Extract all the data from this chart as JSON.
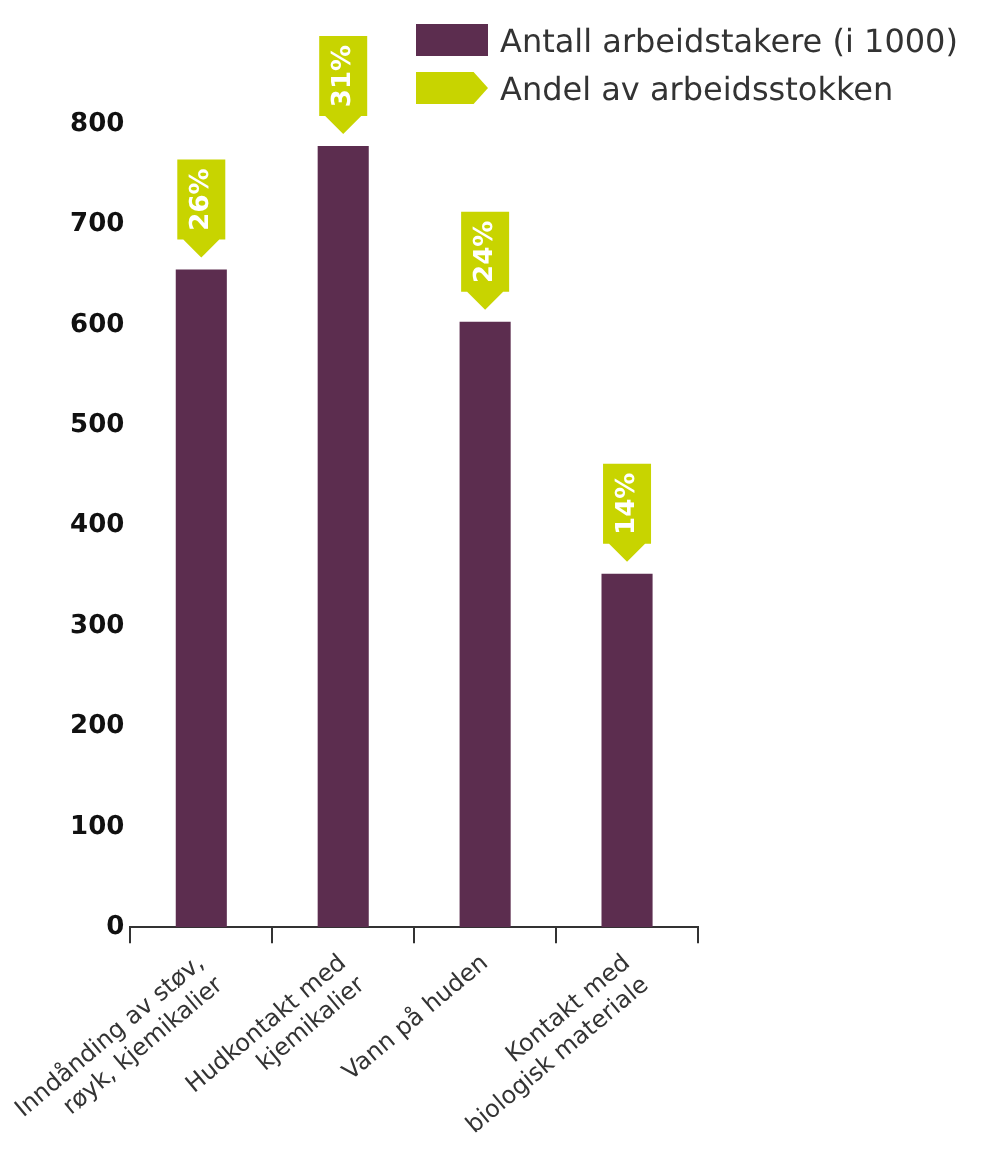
{
  "chart_data": {
    "type": "bar",
    "categories": [
      "Inndånding av støv, røyk, kjemikalier",
      "Hudkontakt med kjemikalier",
      "Vann på huden",
      "Kontakt med biologisk materiale"
    ],
    "series": [
      {
        "name": "Antall arbeidstakere (i 1000)",
        "color": "#5c2d4f",
        "values": [
          655,
          778,
          603,
          352
        ]
      }
    ],
    "annotations": [
      "Andel av arbeidsstokken",
      {
        "text": "26%",
        "x": "Inndånding av støv, røyk, kjemikalier",
        "y": 655
      },
      {
        "text": "31%",
        "x": "Hudkontakt med kjemikalier",
        "y": 778
      },
      {
        "text": "24%",
        "x": "Vann på huden",
        "y": 603
      },
      {
        "text": "14%",
        "x": "Kontakt med biologisk materiale",
        "y": 352
      }
    ],
    "ylim": [
      0,
      800
    ],
    "yticks": [
      0,
      100,
      200,
      300,
      400,
      500,
      600,
      700,
      800
    ],
    "grid": false,
    "legend": "top right"
  }
}
